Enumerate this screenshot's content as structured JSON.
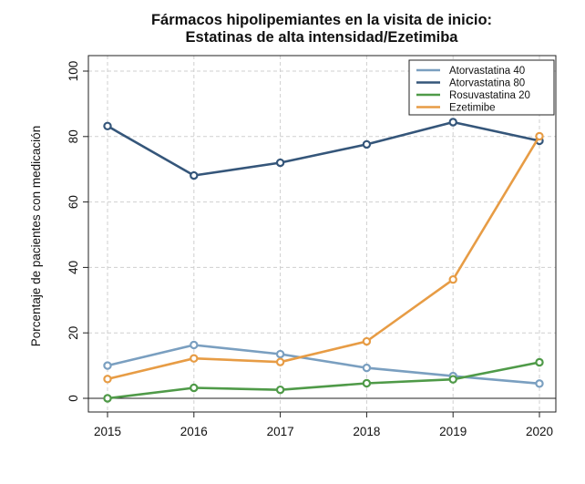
{
  "chart_data": {
    "type": "line",
    "title": "Fármacos hipolipemiantes en la visita de inicio:",
    "subtitle": "Estatinas  de alta intensidad/Ezetimiba",
    "xlabel": "",
    "ylabel": "Porcentaje de pacientes con medicación",
    "x": [
      "2015",
      "2016",
      "2017",
      "2018",
      "2019",
      "2020"
    ],
    "ylim": [
      0,
      100
    ],
    "yticks": [
      "0",
      "20",
      "40",
      "60",
      "80",
      "100"
    ],
    "grid": true,
    "legend_position": "top-right",
    "series": [
      {
        "name": "Atorvastatina 40",
        "color": "#7a9fc0",
        "values": [
          10,
          16.3,
          13.5,
          9.3,
          6.8,
          4.5
        ]
      },
      {
        "name": "Atorvastatina 80",
        "color": "#35567a",
        "values": [
          83.2,
          68.1,
          72.0,
          77.6,
          84.4,
          78.7
        ]
      },
      {
        "name": "Rosuvastatina 20",
        "color": "#4f9a48",
        "values": [
          0,
          3.2,
          2.6,
          4.6,
          5.8,
          11
        ]
      },
      {
        "name": "Ezetimibe",
        "color": "#e79c45",
        "values": [
          5.9,
          12.2,
          11.1,
          17.4,
          36.3,
          80.1
        ]
      }
    ]
  }
}
